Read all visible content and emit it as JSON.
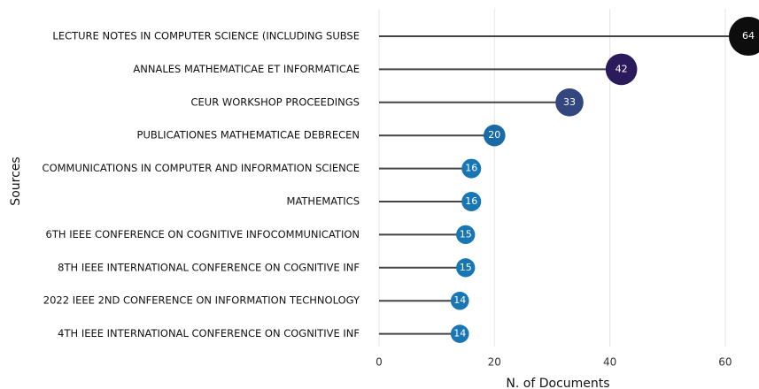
{
  "chart_data": {
    "type": "lollipop",
    "xlabel": "N. of Documents",
    "ylabel": "Sources",
    "categories": [
      "LECTURE NOTES IN COMPUTER SCIENCE (INCLUDING SUBSE",
      "ANNALES MATHEMATICAE ET INFORMATICAE",
      "CEUR WORKSHOP PROCEEDINGS",
      "PUBLICATIONES MATHEMATICAE DEBRECEN",
      "COMMUNICATIONS IN COMPUTER AND INFORMATION SCIENCE",
      "MATHEMATICS",
      "6TH IEEE CONFERENCE ON COGNITIVE INFOCOMMUNICATION",
      "8TH IEEE INTERNATIONAL CONFERENCE ON COGNITIVE INF",
      "2022 IEEE 2ND CONFERENCE ON INFORMATION TECHNOLOGY",
      "4TH IEEE INTERNATIONAL CONFERENCE ON COGNITIVE INF"
    ],
    "values": [
      64,
      42,
      33,
      20,
      16,
      16,
      15,
      15,
      14,
      14
    ],
    "colors": [
      "#0d0d0d",
      "#2b1a5c",
      "#33467f",
      "#1a6aa6",
      "#1776b3",
      "#1776b3",
      "#1776b3",
      "#1776b3",
      "#1776b3",
      "#1776b3"
    ],
    "xlim": [
      0,
      66
    ],
    "xticks": [
      0,
      20,
      40,
      60
    ],
    "grid": true
  }
}
